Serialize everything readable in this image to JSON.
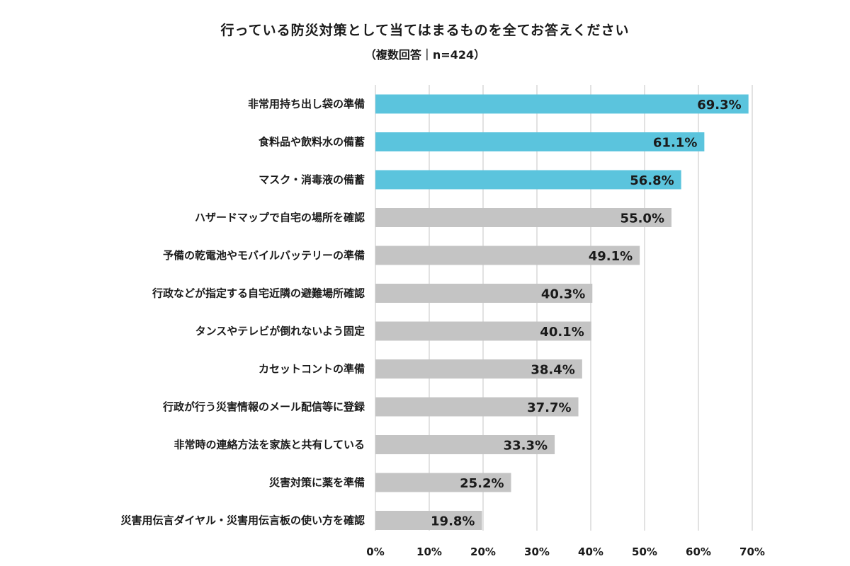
{
  "chart_data": {
    "type": "bar",
    "orientation": "horizontal",
    "title": "行っている防災対策として当てはまるものを全てお答えください",
    "subtitle": "（複数回答｜n=424）",
    "categories": [
      "非常用持ち出し袋の準備",
      "食料品や飲料水の備蓄",
      "マスク・消毒液の備蓄",
      "ハザードマップで自宅の場所を確認",
      "予備の乾電池やモバイルバッテリーの準備",
      "行政などが指定する自宅近隣の避難場所確認",
      "タンスやテレビが倒れないよう固定",
      "カセットコントの準備",
      "行政が行う災害情報のメール配信等に登録",
      "非常時の連絡方法を家族と共有している",
      "災害対策に薬を準備",
      "災害用伝言ダイヤル・災害用伝言板の使い方を確認"
    ],
    "values": [
      69.3,
      61.1,
      56.8,
      55.0,
      49.1,
      40.3,
      40.1,
      38.4,
      37.7,
      33.3,
      25.2,
      19.8
    ],
    "value_labels": [
      "69.3%",
      "61.1%",
      "56.8%",
      "55.0%",
      "49.1%",
      "40.3%",
      "40.1%",
      "38.4%",
      "37.7%",
      "33.3%",
      "25.2%",
      "19.8%"
    ],
    "highlighted_count": 3,
    "xlim": [
      0,
      70
    ],
    "xticks": [
      0,
      10,
      20,
      30,
      40,
      50,
      60,
      70
    ],
    "xtick_labels": [
      "0%",
      "10%",
      "20%",
      "30%",
      "40%",
      "50%",
      "60%",
      "70%"
    ],
    "grid": true,
    "legend": "none",
    "colors": {
      "highlight": "#5bc4dd",
      "default": "#c4c4c4",
      "grid": "#d9d9d9"
    }
  }
}
